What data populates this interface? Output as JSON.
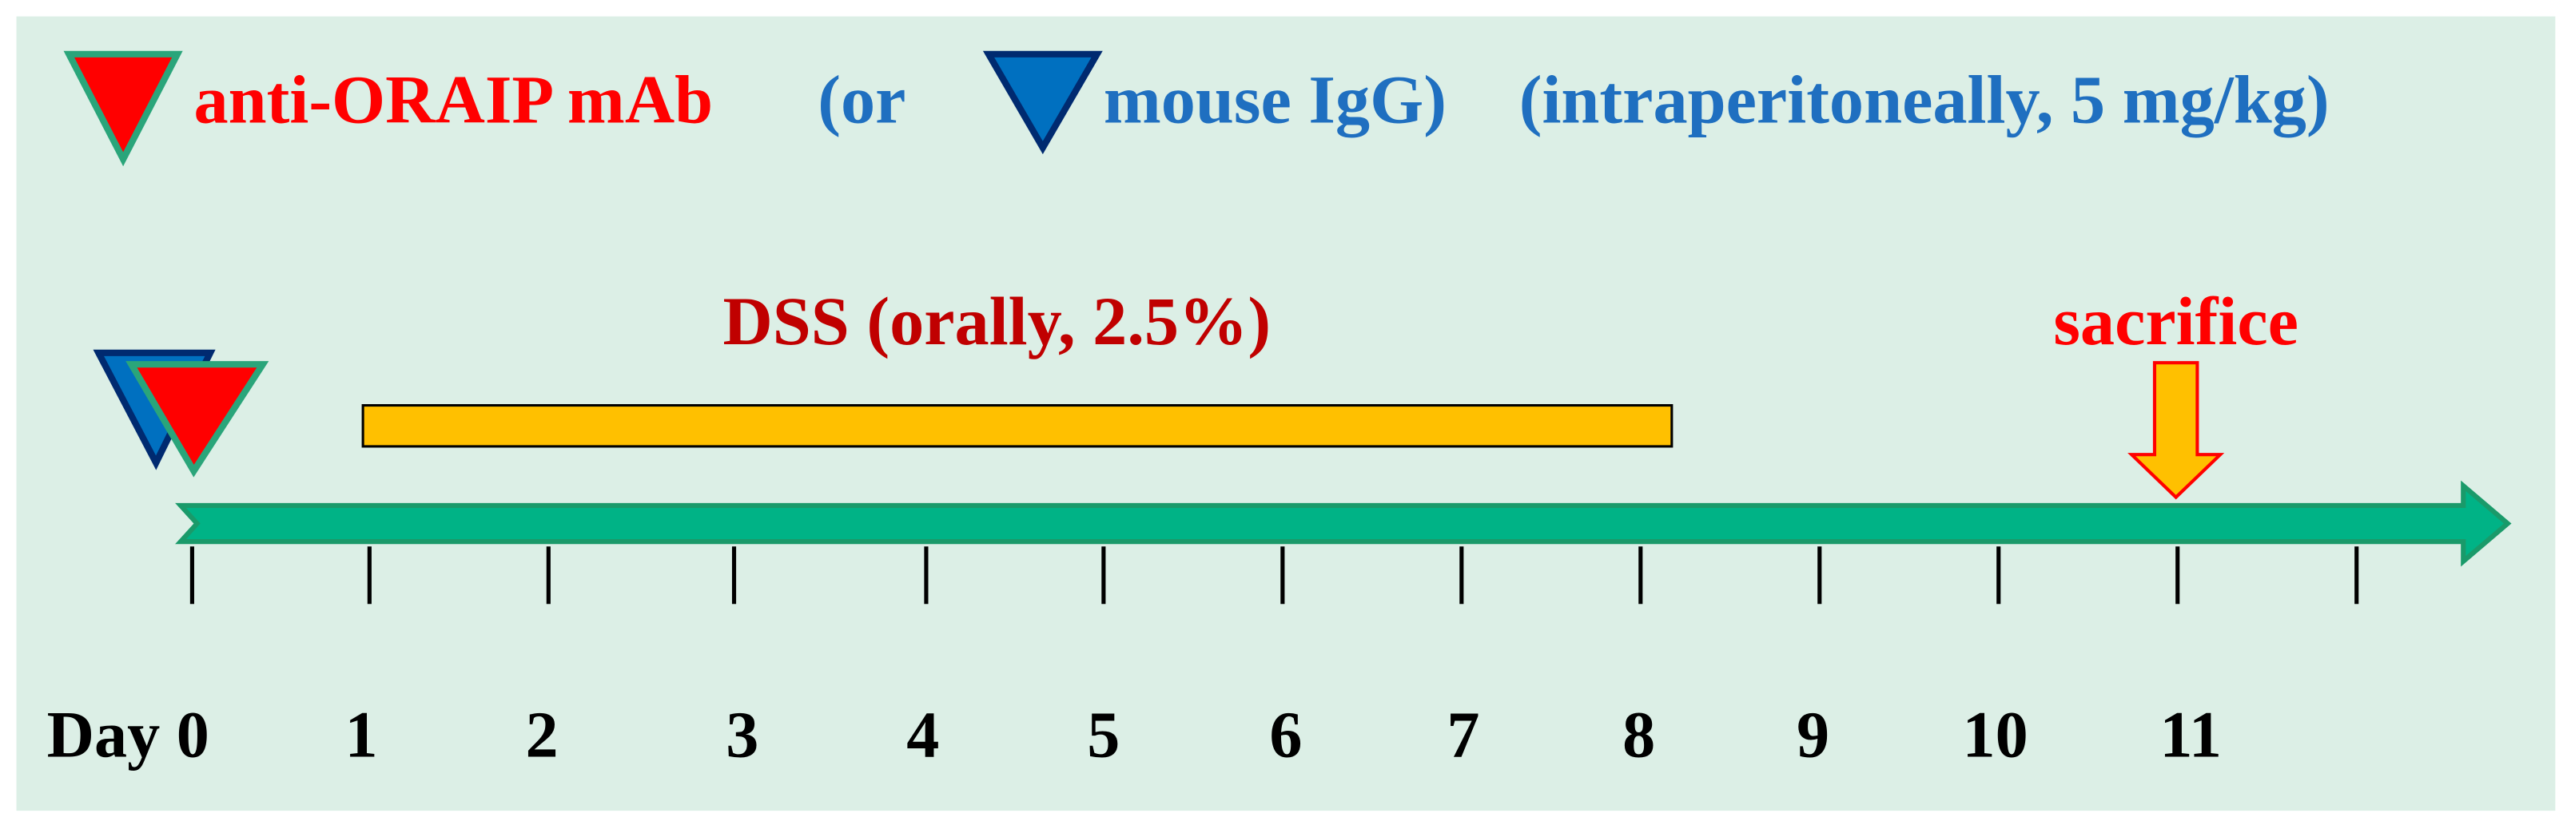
{
  "legend": {
    "antibody": "anti-ORAIP mAb",
    "or": "(or",
    "control": "mouse IgG)",
    "route": "(intraperitoneally, 5 mg/kg)"
  },
  "dss": {
    "label": "DSS (orally, 2.5%)"
  },
  "sacrifice": {
    "label": "sacrifice"
  },
  "days": [
    "Day 0",
    "1",
    "2",
    "3",
    "4",
    "5",
    "6",
    "7",
    "8",
    "9",
    "10",
    "11"
  ]
}
